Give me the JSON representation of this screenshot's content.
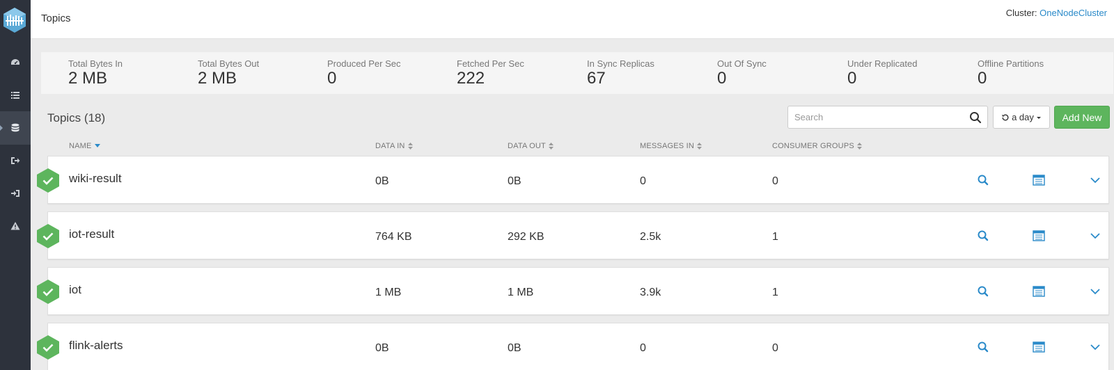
{
  "header": {
    "title": "Topics",
    "cluster_label": "Cluster:",
    "cluster_name": "OneNodeCluster"
  },
  "sidebar": {
    "items": [
      {
        "icon": "dashboard-icon",
        "active": false
      },
      {
        "icon": "list-icon",
        "active": false
      },
      {
        "icon": "database-icon",
        "active": true
      },
      {
        "icon": "sign-out-icon",
        "active": false
      },
      {
        "icon": "sign-in-icon",
        "active": false
      },
      {
        "icon": "warning-icon",
        "active": false
      }
    ]
  },
  "metrics": [
    {
      "label": "Total Bytes In",
      "value": "2 MB"
    },
    {
      "label": "Total Bytes Out",
      "value": "2 MB"
    },
    {
      "label": "Produced Per Sec",
      "value": "0"
    },
    {
      "label": "Fetched Per Sec",
      "value": "222"
    },
    {
      "label": "In Sync Replicas",
      "value": "67"
    },
    {
      "label": "Out Of Sync",
      "value": "0"
    },
    {
      "label": "Under Replicated",
      "value": "0"
    },
    {
      "label": "Offline Partitions",
      "value": "0"
    }
  ],
  "toolbar": {
    "topics_title": "Topics (18)",
    "search_placeholder": "Search",
    "range_label": "a day",
    "add_label": "Add New"
  },
  "table": {
    "columns": [
      "NAME",
      "DATA IN",
      "DATA OUT",
      "MESSAGES IN",
      "CONSUMER GROUPS"
    ],
    "rows": [
      {
        "name": "wiki-result",
        "data_in": "0B",
        "data_out": "0B",
        "messages_in": "0",
        "consumer_groups": "0",
        "status": "ok"
      },
      {
        "name": "iot-result",
        "data_in": "764 KB",
        "data_out": "292 KB",
        "messages_in": "2.5k",
        "consumer_groups": "1",
        "status": "ok"
      },
      {
        "name": "iot",
        "data_in": "1 MB",
        "data_out": "1 MB",
        "messages_in": "3.9k",
        "consumer_groups": "1",
        "status": "ok"
      },
      {
        "name": "flink-alerts",
        "data_in": "0B",
        "data_out": "0B",
        "messages_in": "0",
        "consumer_groups": "0",
        "status": "ok"
      }
    ]
  },
  "colors": {
    "accent": "#2a8ac9",
    "success": "#5db55d",
    "sidebar": "#2d323c"
  }
}
